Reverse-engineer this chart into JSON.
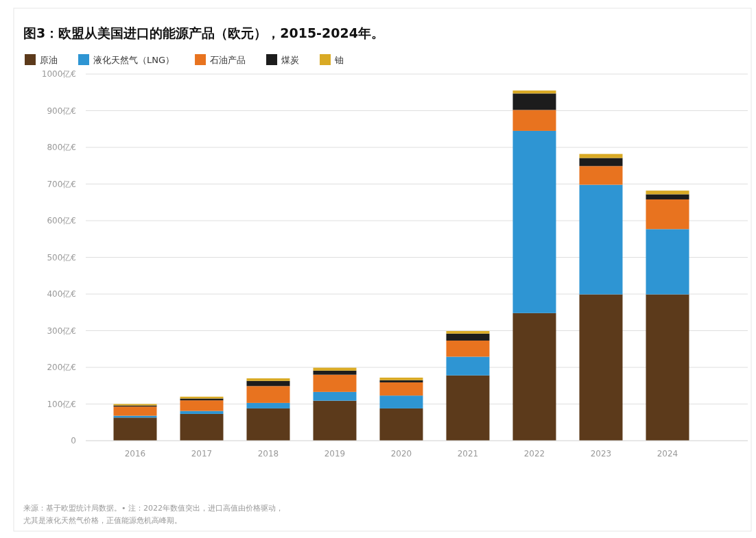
{
  "chart_data": {
    "type": "bar",
    "stacked": true,
    "title": "图3：欧盟从美国进口的能源产品（欧元），2015-2024年。",
    "categories": [
      "2016",
      "2017",
      "2018",
      "2019",
      "2020",
      "2021",
      "2022",
      "2023",
      "2024"
    ],
    "series": [
      {
        "name": "原油",
        "color": "#5c3a1b",
        "values": [
          63,
          73,
          88,
          109,
          88,
          178,
          348,
          399,
          399
        ]
      },
      {
        "name": "液化天然气（LNG）",
        "color": "#2e95d3",
        "values": [
          5,
          8,
          15,
          24,
          35,
          51,
          497,
          299,
          178
        ]
      },
      {
        "name": "石油产品",
        "color": "#e8731f",
        "values": [
          25,
          29,
          46,
          47,
          36,
          44,
          57,
          51,
          81
        ]
      },
      {
        "name": "煤炭",
        "color": "#1c1c1c",
        "values": [
          3,
          5,
          14,
          11,
          6,
          19,
          45,
          22,
          14
        ]
      },
      {
        "name": "铀",
        "color": "#d9aa25",
        "values": [
          4,
          5,
          7,
          8,
          7,
          7,
          8,
          11,
          10
        ]
      }
    ],
    "ylim": [
      0,
      1000
    ],
    "yticks": [
      0,
      {
        "value": 100,
        "label": "100亿€"
      },
      {
        "value": 200,
        "label": "200亿€"
      },
      {
        "value": 300,
        "label": "300亿€"
      },
      {
        "value": 400,
        "label": "400亿€"
      },
      {
        "value": 500,
        "label": "500亿€"
      },
      {
        "value": 600,
        "label": "600亿€"
      },
      {
        "value": 700,
        "label": "700亿€"
      },
      {
        "value": 800,
        "label": "800亿€"
      },
      {
        "value": 900,
        "label": "900亿€"
      },
      {
        "value": 1000,
        "label": "1000亿€"
      }
    ],
    "grid": "y",
    "legend": "top left",
    "annotations": [
      "来源：基于欧盟统计局数据。• 注：2022年数值突出，进口高值由价格驱动，",
      "尤其是液化天然气价格，正值能源危机高峰期。"
    ]
  }
}
